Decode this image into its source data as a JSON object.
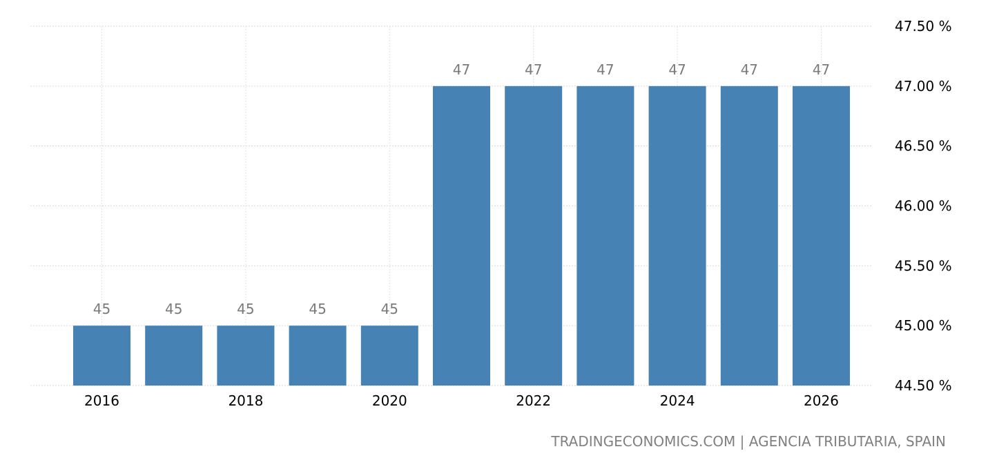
{
  "chart_data": {
    "type": "bar",
    "categories": [
      "2016",
      "2017",
      "2018",
      "2019",
      "2020",
      "2021",
      "2022",
      "2023",
      "2024",
      "2025",
      "2026"
    ],
    "values": [
      45,
      45,
      45,
      45,
      45,
      47,
      47,
      47,
      47,
      47,
      47
    ],
    "data_labels": [
      "45",
      "45",
      "45",
      "45",
      "45",
      "47",
      "47",
      "47",
      "47",
      "47",
      "47"
    ],
    "x_tick_labels": [
      "2016",
      "",
      "2018",
      "",
      "2020",
      "",
      "2022",
      "",
      "2024",
      "",
      "2026"
    ],
    "y_ticks": [
      44.5,
      45.0,
      45.5,
      46.0,
      46.5,
      47.0,
      47.5
    ],
    "y_tick_labels": [
      "44.50 %",
      "45.00 %",
      "45.50 %",
      "46.00 %",
      "46.50 %",
      "47.00 %",
      "47.50 %"
    ],
    "ylim": [
      44.5,
      47.5
    ],
    "y_axis_side": "right",
    "grid": true,
    "bar_color": "#4682b4",
    "data_label_color": "#7a7a7a"
  },
  "source": "TRADINGECONOMICS.COM | AGENCIA TRIBUTARIA, SPAIN"
}
